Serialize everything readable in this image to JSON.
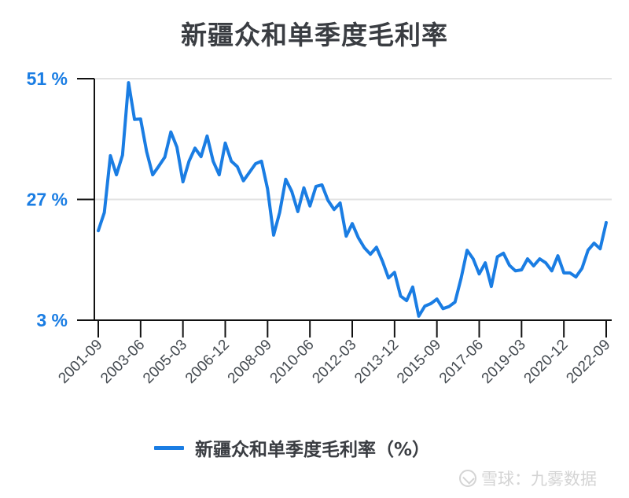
{
  "title": "新疆众和单季度毛利率",
  "legend": {
    "label": "新疆众和单季度毛利率（%）",
    "color": "#1a7de3"
  },
  "watermark": "雪球：九雾数据",
  "y_axis": {
    "ticks": [
      "51 %",
      "27 %",
      "3 %"
    ]
  },
  "x_axis": {
    "ticks": [
      "2001-09",
      "2003-06",
      "2005-03",
      "2006-12",
      "2008-09",
      "2010-06",
      "2012-03",
      "2013-12",
      "2015-09",
      "2017-06",
      "2019-03",
      "2020-12",
      "2022-09"
    ]
  },
  "chart_data": {
    "type": "line",
    "title": "新疆众和单季度毛利率",
    "xlabel": "",
    "ylabel": "",
    "ylim": [
      3,
      51
    ],
    "yticks": [
      3,
      27,
      51
    ],
    "ytick_labels": [
      "3 %",
      "27 %",
      "51 %"
    ],
    "xtick_labels": [
      "2001-09",
      "2003-06",
      "2005-03",
      "2006-12",
      "2008-09",
      "2010-06",
      "2012-03",
      "2013-12",
      "2015-09",
      "2017-06",
      "2019-03",
      "2020-12",
      "2022-09"
    ],
    "grid": "horizontal at 27 and 51",
    "legend_position": "bottom",
    "x_start": "2001-09",
    "x_end": "2022-09",
    "frequency": "quarterly",
    "series": [
      {
        "name": "新疆众和单季度毛利率（%）",
        "color": "#1a7de3",
        "values": [
          20.8,
          24.4,
          35.7,
          31.9,
          35.8,
          50.2,
          42.9,
          43.0,
          36.5,
          31.9,
          33.6,
          35.4,
          40.4,
          37.4,
          30.5,
          34.6,
          37.2,
          35.5,
          39.6,
          34.6,
          31.9,
          38.2,
          34.6,
          33.5,
          30.7,
          32.4,
          34.1,
          34.6,
          29.1,
          19.9,
          24.4,
          31.0,
          28.6,
          24.6,
          29.3,
          25.7,
          29.6,
          29.9,
          26.8,
          25.0,
          26.3,
          19.7,
          22.2,
          19.4,
          17.4,
          16.1,
          17.5,
          14.7,
          11.4,
          12.5,
          7.8,
          6.9,
          9.6,
          3.8,
          5.8,
          6.3,
          7.2,
          5.3,
          5.7,
          6.6,
          11.3,
          16.9,
          15.2,
          12.2,
          14.4,
          9.7,
          15.6,
          16.3,
          13.9,
          12.8,
          13.0,
          15.2,
          13.8,
          15.2,
          14.4,
          12.8,
          15.8,
          12.4,
          12.4,
          11.6,
          13.3,
          16.9,
          18.3,
          17.2,
          22.4
        ]
      }
    ]
  }
}
